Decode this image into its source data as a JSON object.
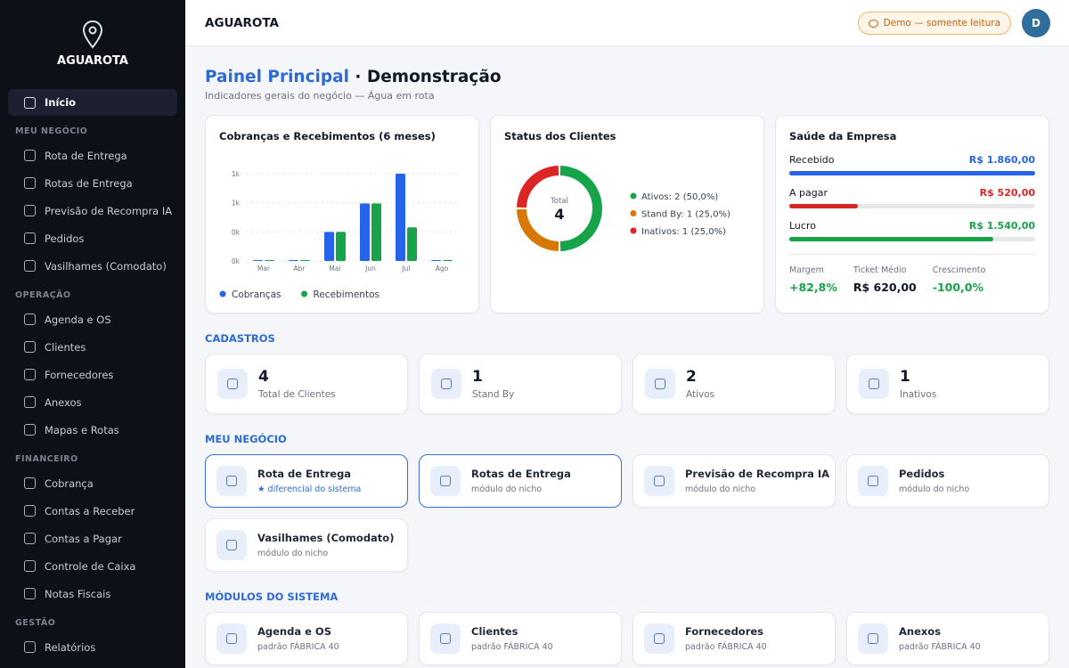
{
  "sidebar": {
    "brand": "AGUAROTA",
    "home": "Início",
    "sections": [
      {
        "title": "MEU NEGÓCIO",
        "items": [
          "Rota de Entrega",
          "Rotas de Entrega",
          "Previsão de Recompra IA",
          "Pedidos",
          "Vasilhames (Comodato)"
        ]
      },
      {
        "title": "OPERAÇÃO",
        "items": [
          "Agenda e OS",
          "Clientes",
          "Fornecedores",
          "Anexos",
          "Mapas e Rotas"
        ]
      },
      {
        "title": "FINANCEIRO",
        "items": [
          "Cobrança",
          "Contas a Receber",
          "Contas a Pagar",
          "Controle de Caixa",
          "Notas Fiscais"
        ]
      },
      {
        "title": "GESTÃO",
        "items": [
          "Relatórios"
        ]
      }
    ]
  },
  "topbar": {
    "title": "AGUAROTA",
    "badge": "Demo — somente leitura",
    "avatar": "D"
  },
  "header": {
    "title": "Painel Principal",
    "title_suffix": "· Demonstração",
    "subtitle": "Indicadores gerais do negócio — Água em rota"
  },
  "chart_data": [
    {
      "type": "bar",
      "title": "Cobranças e Recebimentos (6 meses)",
      "categories": [
        "Mar",
        "Abr",
        "Mai",
        "Jun",
        "Jul",
        "Ago"
      ],
      "series": [
        {
          "name": "Cobranças",
          "color": "#2563eb",
          "values": [
            0,
            0,
            450,
            890,
            1350,
            0
          ]
        },
        {
          "name": "Recebimentos",
          "color": "#16a34a",
          "values": [
            0,
            0,
            450,
            890,
            520,
            0
          ]
        }
      ],
      "ylim": [
        0,
        1350
      ],
      "yticks": [
        {
          "value": 0,
          "label": "0k"
        },
        {
          "value": 450,
          "label": "0k"
        },
        {
          "value": 900,
          "label": "1k"
        },
        {
          "value": 1350,
          "label": "1k"
        }
      ],
      "grid": true
    },
    {
      "type": "pie",
      "title": "Status dos Clientes",
      "values": [
        2,
        1,
        1
      ],
      "value_labels": [
        "Ativos: 2 (50,0%)",
        "Stand By: 1 (25,0%)",
        "Inativos: 1 (25,0%)"
      ],
      "colors": [
        "#16a34a",
        "#d97706",
        "#dc2626"
      ],
      "center_label": "Total",
      "center_value": 4
    }
  ],
  "health": {
    "title": "Saúde da Empresa",
    "bars": [
      {
        "label": "Recebido",
        "value": 1860,
        "value_label": "R$ 1.860,00",
        "color": "#2563eb"
      },
      {
        "label": "A pagar",
        "value": 520,
        "value_label": "R$ 520,00",
        "color": "#dc2626"
      },
      {
        "label": "Lucro",
        "value": 1540,
        "value_label": "R$ 1.540,00",
        "color": "#16a34a"
      }
    ],
    "metrics": [
      {
        "label": "Margem",
        "value": "+82,8%",
        "color": "#16a34a"
      },
      {
        "label": "Ticket Médio",
        "value": "R$ 620,00",
        "color": "#111827"
      },
      {
        "label": "Crescimento",
        "value": "-100,0%",
        "color": "#16a34a"
      }
    ]
  },
  "cadastros": {
    "title": "CADASTROS",
    "cards": [
      {
        "value": 4,
        "label": "Total de Clientes"
      },
      {
        "value": 1,
        "label": "Stand By"
      },
      {
        "value": 2,
        "label": "Ativos"
      },
      {
        "value": 1,
        "label": "Inativos"
      }
    ]
  },
  "meu_negocio": {
    "title": "MEU NEGÓCIO",
    "cards": [
      {
        "title": "Rota de Entrega",
        "subtitle": "★ diferencial do sistema"
      },
      {
        "title": "Rotas de Entrega",
        "subtitle": "módulo do nicho"
      },
      {
        "title": "Previsão de Recompra IA",
        "subtitle": "módulo do nicho"
      },
      {
        "title": "Pedidos",
        "subtitle": "módulo do nicho"
      },
      {
        "title": "Vasilhames (Comodato)",
        "subtitle": "módulo do nicho"
      }
    ]
  },
  "modulos": {
    "title": "MÓDULOS DO SISTEMA",
    "cards": [
      {
        "title": "Agenda e OS",
        "subtitle": "padrão FÁBRICA 40"
      },
      {
        "title": "Clientes",
        "subtitle": "padrão FÁBRICA 40"
      },
      {
        "title": "Fornecedores",
        "subtitle": "padrão FÁBRICA 40"
      },
      {
        "title": "Anexos",
        "subtitle": "padrão FÁBRICA 40"
      }
    ]
  }
}
